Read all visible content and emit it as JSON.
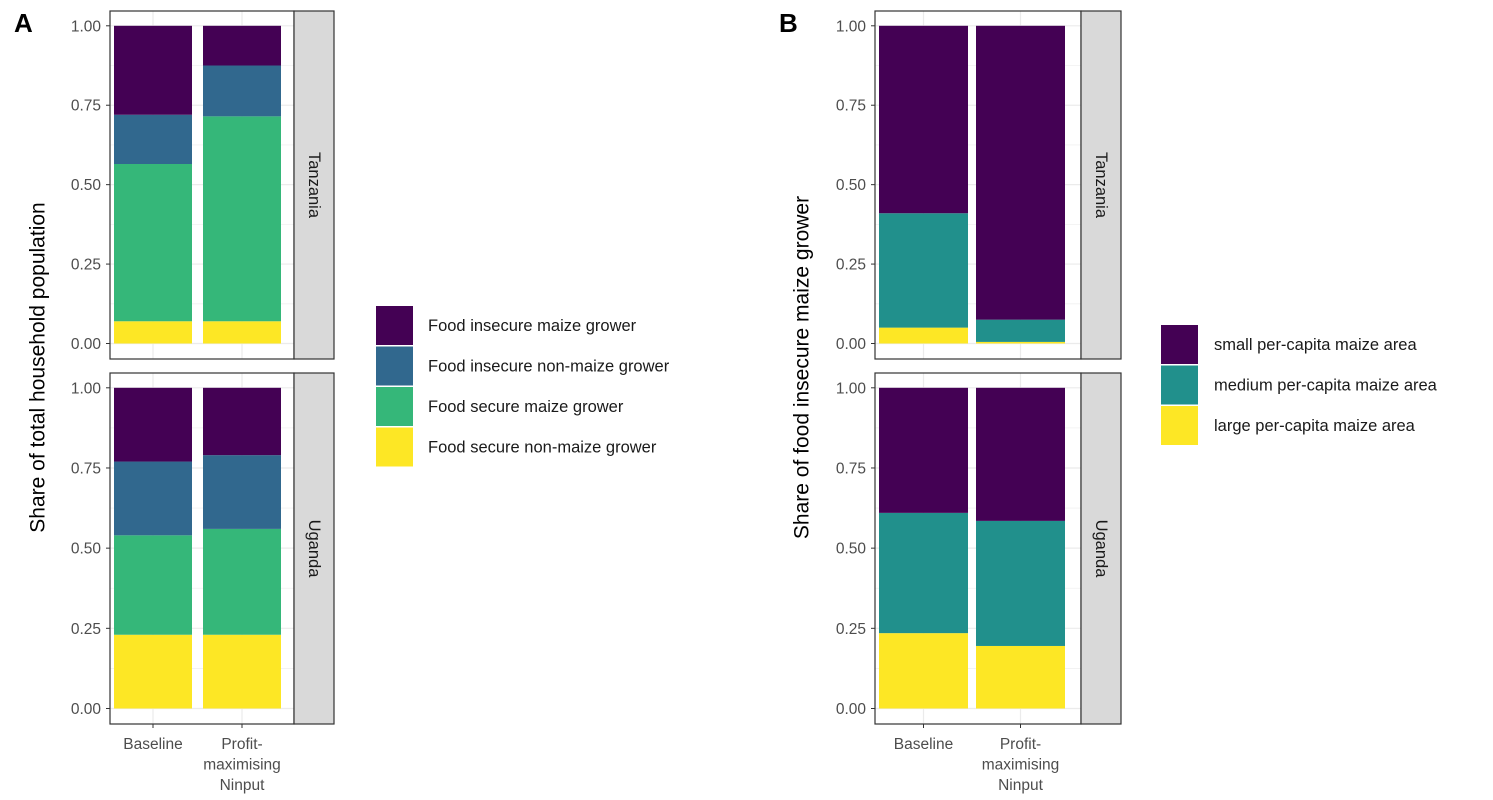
{
  "chart_data": [
    {
      "panel": "A",
      "type": "bar",
      "stacked": true,
      "ylabel": "Share of total household population",
      "xlabel": "",
      "ylim": [
        0,
        1
      ],
      "yticks": [
        "0.00",
        "0.25",
        "0.50",
        "0.75",
        "1.00"
      ],
      "x_labels": [
        [
          "Baseline"
        ],
        [
          "Profit-",
          "maximising",
          "Ninput"
        ]
      ],
      "facets": [
        "Tanzania",
        "Uganda"
      ],
      "legend_position": "right",
      "grid": true,
      "series": [
        {
          "name": "Food insecure maize grower",
          "color": "#440154",
          "values": {
            "Tanzania": [
              0.28,
              0.125
            ],
            "Uganda": [
              0.23,
              0.21
            ]
          }
        },
        {
          "name": "Food insecure non-maize grower",
          "color": "#31688E",
          "values": {
            "Tanzania": [
              0.155,
              0.16
            ],
            "Uganda": [
              0.23,
              0.23
            ]
          }
        },
        {
          "name": "Food secure maize grower",
          "color": "#35B779",
          "values": {
            "Tanzania": [
              0.495,
              0.645
            ],
            "Uganda": [
              0.31,
              0.33
            ]
          }
        },
        {
          "name": "Food secure non-maize grower",
          "color": "#FDE725",
          "values": {
            "Tanzania": [
              0.07,
              0.07
            ],
            "Uganda": [
              0.23,
              0.23
            ]
          }
        }
      ]
    },
    {
      "panel": "B",
      "type": "bar",
      "stacked": true,
      "ylabel": "Share of food insecure maize grower",
      "xlabel": "",
      "ylim": [
        0,
        1
      ],
      "yticks": [
        "0.00",
        "0.25",
        "0.50",
        "0.75",
        "1.00"
      ],
      "x_labels": [
        [
          "Baseline"
        ],
        [
          "Profit-",
          "maximising",
          "Ninput"
        ]
      ],
      "facets": [
        "Tanzania",
        "Uganda"
      ],
      "legend_position": "right",
      "grid": true,
      "series": [
        {
          "name": "small per-capita maize area",
          "color": "#440154",
          "values": {
            "Tanzania": [
              0.59,
              0.925
            ],
            "Uganda": [
              0.39,
              0.415
            ]
          }
        },
        {
          "name": "medium per-capita maize area",
          "color": "#21908C",
          "values": {
            "Tanzania": [
              0.36,
              0.07
            ],
            "Uganda": [
              0.375,
              0.39
            ]
          }
        },
        {
          "name": "large per-capita maize area",
          "color": "#FDE725",
          "values": {
            "Tanzania": [
              0.05,
              0.005
            ],
            "Uganda": [
              0.235,
              0.195
            ]
          }
        }
      ]
    }
  ]
}
